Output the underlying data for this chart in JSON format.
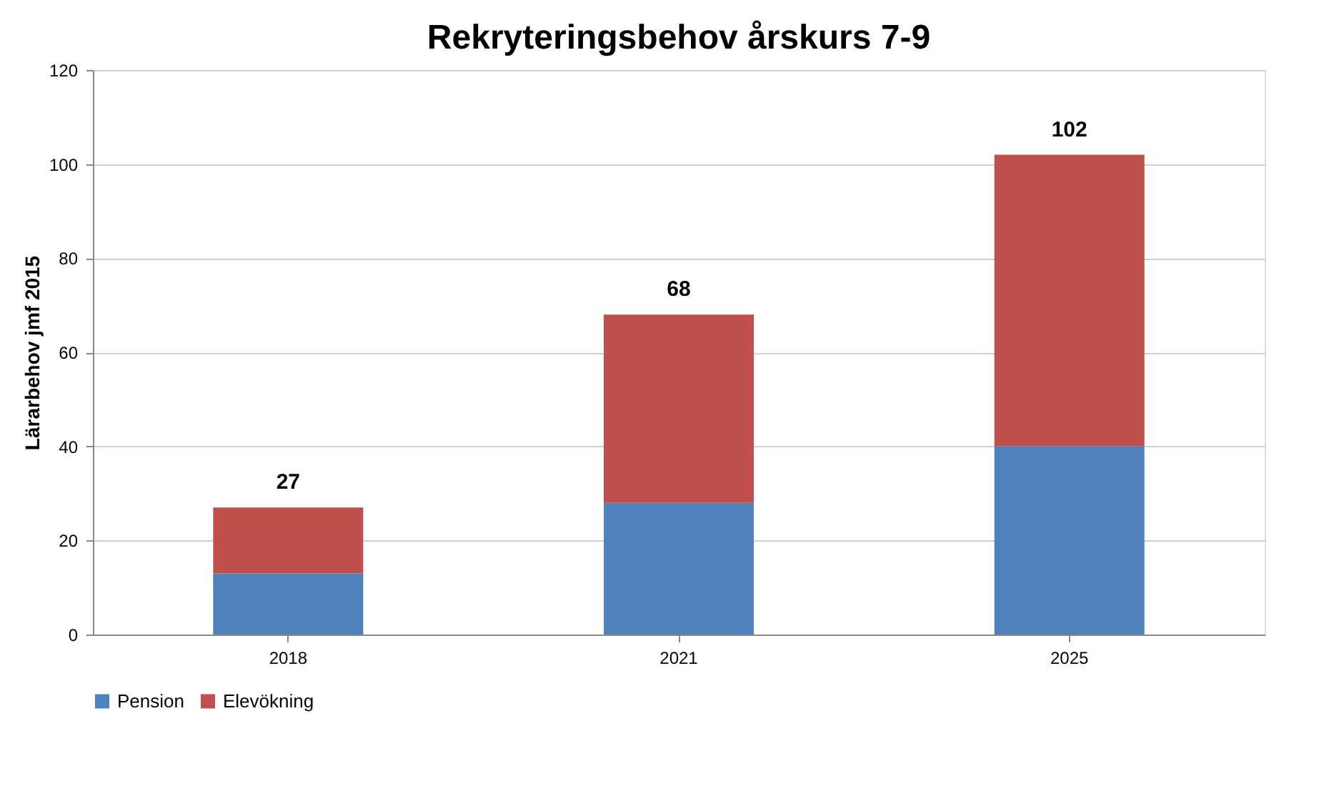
{
  "chart_data": {
    "type": "bar",
    "title": "Rekryteringsbehov årskurs 7-9",
    "ylabel": "Lärarbehov jmf 2015",
    "categories": [
      "2018",
      "2021",
      "2025"
    ],
    "stacked": true,
    "series": [
      {
        "name": "Pension",
        "color": "#4f81bd",
        "values": [
          13,
          28,
          40
        ]
      },
      {
        "name": "Elevökning",
        "color": "#c0504d",
        "values": [
          14,
          40,
          62
        ]
      }
    ],
    "totals": [
      "27",
      "68",
      "102"
    ],
    "ylim": [
      0,
      120
    ],
    "yticks": [
      0,
      20,
      40,
      60,
      80,
      100,
      120
    ],
    "grid": "y",
    "legend": "bottom"
  }
}
